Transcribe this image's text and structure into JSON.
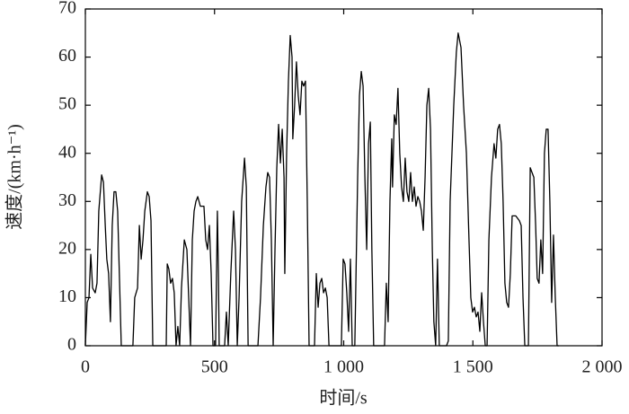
{
  "chart_data": {
    "type": "line",
    "xlabel": "时间/s",
    "ylabel": "速度/(km·h⁻¹)",
    "xlim": [
      0,
      2000
    ],
    "ylim": [
      0,
      70
    ],
    "xticks": [
      0,
      500,
      {
        "value": 1000,
        "label": "1 000"
      },
      {
        "value": 1500,
        "label": "1 500"
      },
      {
        "value": 2000,
        "label": "2 000"
      }
    ],
    "yticks": [
      0,
      10,
      20,
      30,
      40,
      50,
      60,
      70
    ],
    "color": "#000000",
    "x": [
      0,
      7,
      14,
      21,
      28,
      38,
      45,
      52,
      63,
      70,
      77,
      83,
      90,
      97,
      104,
      111,
      118,
      125,
      132,
      139,
      184,
      191,
      202,
      209,
      216,
      223,
      230,
      240,
      247,
      254,
      261,
      313,
      317,
      323,
      330,
      337,
      344,
      351,
      358,
      365,
      372,
      383,
      393,
      400,
      407,
      414,
      421,
      428,
      435,
      445,
      459,
      466,
      473,
      480,
      487,
      494,
      504,
      511,
      515,
      518,
      539,
      546,
      553,
      563,
      574,
      581,
      588,
      595,
      605,
      616,
      623,
      630,
      668,
      678,
      689,
      699,
      706,
      713,
      720,
      727,
      734,
      741,
      748,
      755,
      762,
      769,
      772,
      779,
      786,
      793,
      800,
      803,
      810,
      817,
      824,
      831,
      838,
      845,
      852,
      859,
      866,
      887,
      894,
      901,
      908,
      915,
      922,
      929,
      936,
      943,
      991,
      998,
      1005,
      1012,
      1019,
      1026,
      1033,
      1043,
      1054,
      1061,
      1068,
      1075,
      1082,
      1089,
      1096,
      1103,
      1109,
      1116,
      1158,
      1165,
      1172,
      1179,
      1186,
      1189,
      1196,
      1203,
      1210,
      1217,
      1224,
      1231,
      1238,
      1245,
      1252,
      1259,
      1266,
      1273,
      1280,
      1287,
      1294,
      1301,
      1308,
      1315,
      1322,
      1329,
      1336,
      1343,
      1349,
      1356,
      1363,
      1370,
      1398,
      1405,
      1412,
      1426,
      1436,
      1443,
      1454,
      1464,
      1475,
      1485,
      1492,
      1499,
      1506,
      1513,
      1520,
      1527,
      1534,
      1541,
      1548,
      1555,
      1562,
      1572,
      1582,
      1589,
      1596,
      1603,
      1610,
      1617,
      1624,
      1631,
      1638,
      1645,
      1652,
      1666,
      1680,
      1687,
      1694,
      1701,
      1715,
      1722,
      1729,
      1736,
      1743,
      1749,
      1756,
      1763,
      1770,
      1777,
      1784,
      1791,
      1798,
      1805,
      1812,
      1819,
      1826,
      1833
    ],
    "values": [
      0,
      9,
      10,
      19,
      12,
      11,
      13,
      28,
      35.5,
      34,
      25,
      18,
      15,
      5,
      25,
      32,
      32,
      28,
      14,
      0,
      0,
      10,
      12,
      25,
      18,
      22,
      28,
      32,
      31,
      26,
      0,
      0,
      17,
      16,
      13,
      14,
      11,
      0,
      4,
      0,
      12,
      22,
      20,
      10,
      0,
      22,
      28,
      30,
      31,
      29,
      29,
      22,
      20,
      25,
      15,
      0,
      0,
      28,
      15,
      0,
      0,
      7,
      0,
      15,
      28,
      20,
      0,
      10,
      30,
      39,
      33,
      0,
      0,
      10,
      25,
      33,
      36,
      35,
      22,
      0,
      20,
      37,
      46,
      38,
      45,
      35,
      15,
      40,
      55,
      64.5,
      60,
      43,
      50,
      59,
      52,
      48,
      55,
      54,
      55,
      30,
      0,
      0,
      15,
      8,
      13,
      14,
      11,
      12,
      10,
      0,
      0,
      18,
      17,
      11,
      3,
      18,
      0,
      0,
      35,
      52,
      57,
      54,
      35,
      20,
      42,
      46.5,
      20,
      0,
      0,
      13,
      5,
      30,
      43,
      33,
      48,
      46,
      53.5,
      40,
      33,
      30,
      39,
      32,
      30,
      36,
      30,
      33,
      29,
      31,
      30,
      28,
      24,
      35,
      50,
      53.5,
      45,
      20,
      5,
      0,
      18,
      0,
      0,
      1,
      30,
      50,
      61,
      65,
      62,
      50,
      40,
      22,
      10,
      7,
      8,
      6,
      7,
      3,
      11,
      5,
      0,
      0,
      22,
      35,
      42,
      39,
      45,
      46,
      42,
      30,
      13,
      9,
      8,
      15,
      27,
      27,
      26,
      25,
      10,
      0,
      0,
      37,
      36,
      35,
      25,
      14,
      13,
      22,
      15,
      40,
      45,
      45,
      30,
      9,
      23,
      10,
      0,
      0
    ]
  }
}
